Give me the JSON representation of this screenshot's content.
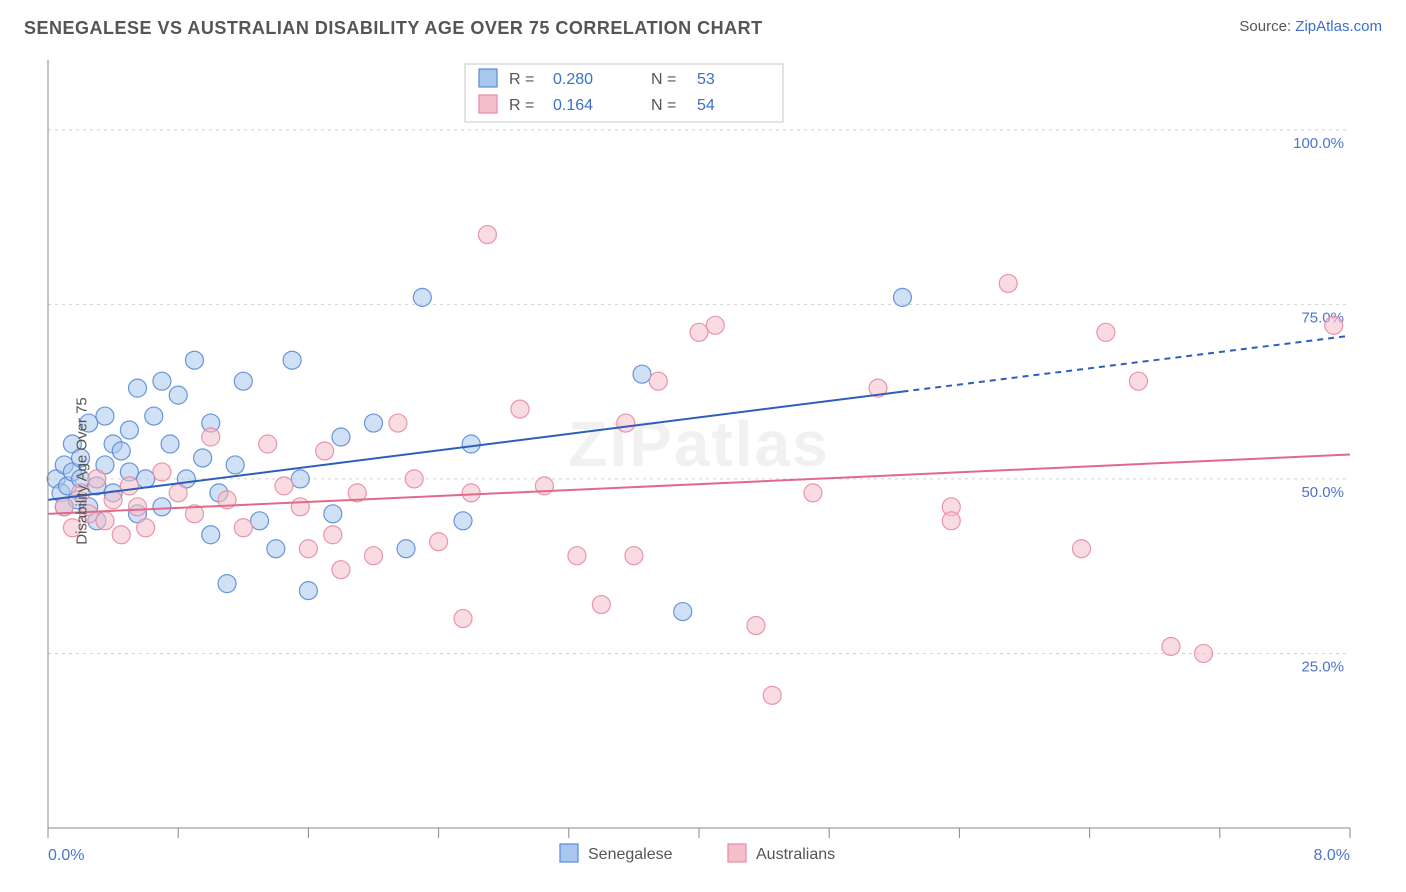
{
  "title": "SENEGALESE VS AUSTRALIAN DISABILITY AGE OVER 75 CORRELATION CHART",
  "source_label": "Source: ",
  "source_name": "ZipAtlas.com",
  "ylabel": "Disability Age Over 75",
  "watermark": "ZIPatlas",
  "chart": {
    "type": "scatter",
    "background_color": "#ffffff",
    "grid_color": "#d0d0d0",
    "axis_color": "#888888",
    "label_color": "#4a74d0",
    "xlim": [
      0.0,
      8.0
    ],
    "ylim": [
      0.0,
      110.0
    ],
    "xticks": [
      0.0,
      0.8,
      1.6,
      2.4,
      3.2,
      4.0,
      4.8,
      5.6,
      6.4,
      7.2,
      8.0
    ],
    "xlabels": {
      "0.0": "0.0%",
      "8.0": "8.0%"
    },
    "ygrid": [
      25.0,
      50.0,
      75.0,
      100.0
    ],
    "ylabels": {
      "25.0": "25.0%",
      "50.0": "50.0%",
      "75.0": "75.0%",
      "100.0": "100.0%"
    },
    "marker_radius": 9,
    "marker_opacity": 0.55,
    "marker_stroke_width": 1.2,
    "line_width": 2
  },
  "series": [
    {
      "name": "Senegalese",
      "fill": "#a9c6ec",
      "stroke": "#5a8bd6",
      "line_color": "#2e5fb8",
      "R": "0.280",
      "N": "53",
      "trend": {
        "x1": 0.0,
        "y1": 47.0,
        "x2": 5.25,
        "y2": 62.5,
        "x2_ext": 8.0,
        "y2_ext": 70.5,
        "dashed_ext": true
      },
      "points": [
        [
          0.05,
          50
        ],
        [
          0.08,
          48
        ],
        [
          0.1,
          52
        ],
        [
          0.1,
          46
        ],
        [
          0.12,
          49
        ],
        [
          0.15,
          51
        ],
        [
          0.15,
          55
        ],
        [
          0.18,
          47
        ],
        [
          0.2,
          53
        ],
        [
          0.2,
          50
        ],
        [
          0.25,
          46
        ],
        [
          0.25,
          58
        ],
        [
          0.3,
          49
        ],
        [
          0.3,
          44
        ],
        [
          0.35,
          59
        ],
        [
          0.35,
          52
        ],
        [
          0.4,
          55
        ],
        [
          0.4,
          48
        ],
        [
          0.45,
          54
        ],
        [
          0.5,
          57
        ],
        [
          0.5,
          51
        ],
        [
          0.55,
          63
        ],
        [
          0.55,
          45
        ],
        [
          0.6,
          50
        ],
        [
          0.65,
          59
        ],
        [
          0.7,
          64
        ],
        [
          0.7,
          46
        ],
        [
          0.75,
          55
        ],
        [
          0.8,
          62
        ],
        [
          0.85,
          50
        ],
        [
          0.9,
          67
        ],
        [
          0.95,
          53
        ],
        [
          1.0,
          42
        ],
        [
          1.0,
          58
        ],
        [
          1.05,
          48
        ],
        [
          1.1,
          35
        ],
        [
          1.15,
          52
        ],
        [
          1.2,
          64
        ],
        [
          1.3,
          44
        ],
        [
          1.4,
          40
        ],
        [
          1.5,
          67
        ],
        [
          1.55,
          50
        ],
        [
          1.6,
          34
        ],
        [
          1.75,
          45
        ],
        [
          1.8,
          56
        ],
        [
          2.0,
          58
        ],
        [
          2.2,
          40
        ],
        [
          2.3,
          76
        ],
        [
          2.55,
          44
        ],
        [
          2.6,
          55
        ],
        [
          3.65,
          65
        ],
        [
          3.9,
          31
        ],
        [
          5.25,
          76
        ]
      ]
    },
    {
      "name": "Australians",
      "fill": "#f4bfcb",
      "stroke": "#e98aa3",
      "line_color": "#e06a8a",
      "R": "0.164",
      "N": "54",
      "trend": {
        "x1": 0.0,
        "y1": 45.0,
        "x2": 8.0,
        "y2": 53.5,
        "dashed_ext": false
      },
      "points": [
        [
          0.1,
          46
        ],
        [
          0.15,
          43
        ],
        [
          0.2,
          48
        ],
        [
          0.25,
          45
        ],
        [
          0.3,
          50
        ],
        [
          0.35,
          44
        ],
        [
          0.4,
          47
        ],
        [
          0.45,
          42
        ],
        [
          0.5,
          49
        ],
        [
          0.55,
          46
        ],
        [
          0.6,
          43
        ],
        [
          0.7,
          51
        ],
        [
          0.8,
          48
        ],
        [
          0.9,
          45
        ],
        [
          1.0,
          56
        ],
        [
          1.1,
          47
        ],
        [
          1.2,
          43
        ],
        [
          1.35,
          55
        ],
        [
          1.45,
          49
        ],
        [
          1.55,
          46
        ],
        [
          1.6,
          40
        ],
        [
          1.7,
          54
        ],
        [
          1.75,
          42
        ],
        [
          1.8,
          37
        ],
        [
          1.9,
          48
        ],
        [
          2.0,
          39
        ],
        [
          2.15,
          58
        ],
        [
          2.25,
          50
        ],
        [
          2.4,
          41
        ],
        [
          2.55,
          30
        ],
        [
          2.6,
          48
        ],
        [
          2.7,
          85
        ],
        [
          2.9,
          60
        ],
        [
          3.05,
          49
        ],
        [
          3.25,
          39
        ],
        [
          3.4,
          32
        ],
        [
          3.55,
          58
        ],
        [
          3.6,
          39
        ],
        [
          3.75,
          64
        ],
        [
          4.0,
          71
        ],
        [
          4.1,
          72
        ],
        [
          4.35,
          29
        ],
        [
          4.45,
          19
        ],
        [
          4.7,
          48
        ],
        [
          5.1,
          63
        ],
        [
          5.55,
          46
        ],
        [
          5.55,
          44
        ],
        [
          5.9,
          78
        ],
        [
          6.35,
          40
        ],
        [
          6.5,
          71
        ],
        [
          6.7,
          64
        ],
        [
          6.9,
          26
        ],
        [
          7.1,
          25
        ],
        [
          7.9,
          72
        ]
      ]
    }
  ],
  "legend": {
    "r_label": "R =",
    "n_label": "N ="
  },
  "bottom_legend": [
    {
      "name": "Senegalese",
      "fill": "#a9c6ec",
      "stroke": "#5a8bd6"
    },
    {
      "name": "Australians",
      "fill": "#f4bfcb",
      "stroke": "#e98aa3"
    }
  ]
}
